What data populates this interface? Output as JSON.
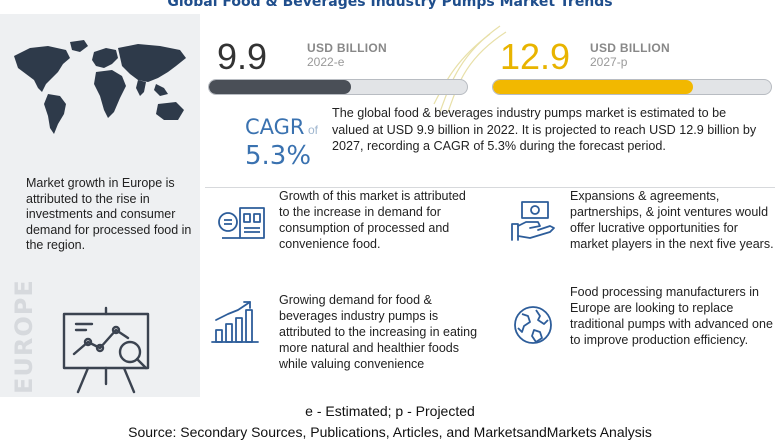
{
  "title": "Global Food & Beverages Industry Pumps Market Trends",
  "left_panel": {
    "europe_text": "Market growth in Europe is attributed to the rise in investments and consumer demand for processed food in the region.",
    "vertical_label": "EUROPE"
  },
  "market": {
    "value_2022": "9.9",
    "unit_2022": "USD BILLION",
    "year_2022": "2022-e",
    "value_2027": "12.9",
    "unit_2027": "USD BILLION",
    "year_2027": "2027-p",
    "bar_2022_fill": 0.55,
    "bar_2027_fill": 0.72
  },
  "cagr": {
    "label": "CAGR",
    "of": "of",
    "value": "5.3%"
  },
  "summary": "The global food & beverages industry pumps market is estimated to be valued at USD 9.9 billion in 2022. It is projected to reach USD 12.9 billion by 2027, recording a CAGR of 5.3% during the forecast period.",
  "blocks": [
    {
      "text": "Growth of this market is attributed to the increase in demand for consumption of processed and convenience food.",
      "icon": "factory-food-icon"
    },
    {
      "text": "Expansions & agreements, partnerships, & joint ventures would offer lucrative opportunities for market players in the next five years.",
      "icon": "handshake-money-icon"
    },
    {
      "text": "Growing demand for food & beverages industry pumps is attributed to the increasing in eating more natural and healthier foods while valuing convenience",
      "icon": "bar-chart-growth-icon"
    },
    {
      "text": "Food processing manufacturers in Europe are looking to replace traditional pumps with advanced one to improve production efficiency.",
      "icon": "globe-icon"
    }
  ],
  "footer": {
    "note": "e - Estimated; p - Projected",
    "source": "Source: Secondary Sources, Publications, Articles, and MarketsandMarkets Analysis"
  },
  "colors": {
    "title": "#1f4e8c",
    "accent_blue": "#3a72b0",
    "accent_yellow": "#f2b800",
    "dark_bar": "#4a4f57",
    "left_panel_bg": "#eef0f2"
  }
}
